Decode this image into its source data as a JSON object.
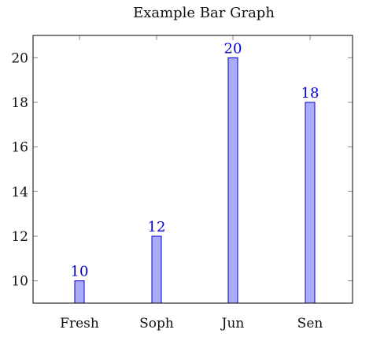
{
  "chart_data": {
    "type": "bar",
    "title": "Example Bar Graph",
    "xlabel": "",
    "ylabel": "",
    "categories": [
      "Fresh",
      "Soph",
      "Jun",
      "Sen"
    ],
    "values": [
      10,
      12,
      20,
      18
    ],
    "data_labels": [
      "10",
      "12",
      "20",
      "18"
    ],
    "ylim": [
      9,
      21
    ],
    "yticks": [
      10,
      12,
      14,
      16,
      18,
      20
    ],
    "ytick_labels": [
      "10",
      "12",
      "14",
      "16",
      "18",
      "20"
    ],
    "grid": false,
    "legend": "none",
    "colors": {
      "bar_fill": "#aaaaff",
      "bar_stroke": "#0000cc",
      "data_label": "#0000cc",
      "axis": "#000000",
      "tick": "#888888"
    }
  }
}
